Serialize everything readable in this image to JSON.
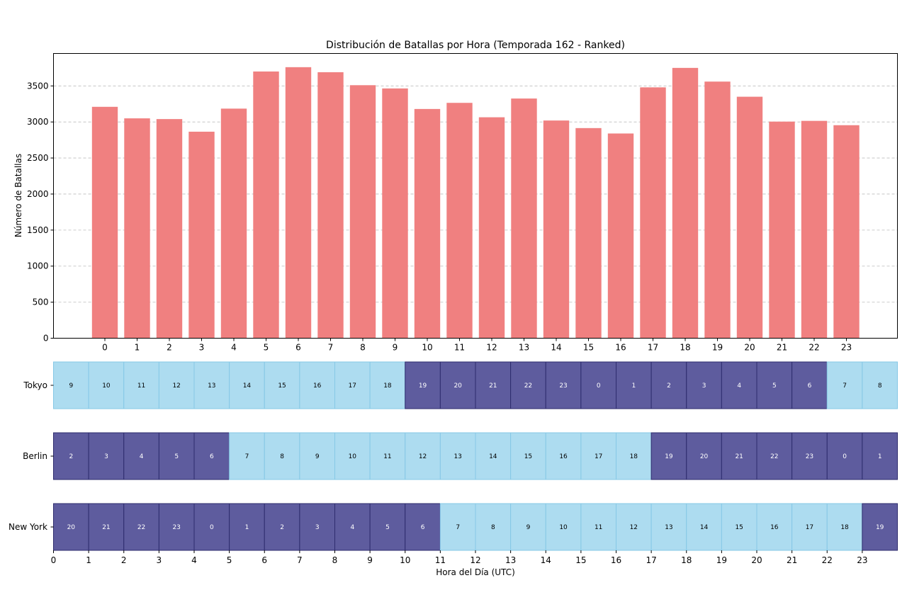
{
  "chart_data": [
    {
      "type": "bar",
      "title": "Distribución de Batallas por Hora (Temporada 162 - Ranked)",
      "xlabel": "",
      "ylabel": "Número de Batallas",
      "categories": [
        "0",
        "1",
        "2",
        "3",
        "4",
        "5",
        "6",
        "7",
        "8",
        "9",
        "10",
        "11",
        "12",
        "13",
        "14",
        "15",
        "16",
        "17",
        "18",
        "19",
        "20",
        "21",
        "22",
        "23"
      ],
      "values": [
        3210,
        3050,
        3040,
        2865,
        3185,
        3700,
        3760,
        3690,
        3510,
        3465,
        3180,
        3265,
        3065,
        3325,
        3020,
        2915,
        2840,
        3480,
        3750,
        3560,
        3350,
        3005,
        3015,
        2955
      ],
      "ylim": [
        0,
        3950
      ],
      "yticks": [
        0,
        500,
        1000,
        1500,
        2000,
        2500,
        3000,
        3500
      ],
      "grid": "y-dashed",
      "bar_color": "#F08080"
    },
    {
      "type": "heatmap",
      "xlabel": "Hora del Día (UTC)",
      "xticks": [
        "0",
        "1",
        "2",
        "3",
        "4",
        "5",
        "6",
        "7",
        "8",
        "9",
        "10",
        "11",
        "12",
        "13",
        "14",
        "15",
        "16",
        "17",
        "18",
        "19",
        "20",
        "21",
        "22",
        "23"
      ],
      "day_color": "#ADDCF0",
      "night_color": "#5E5C9E",
      "rows": [
        {
          "label": "Tokyo",
          "hours": [
            9,
            10,
            11,
            12,
            13,
            14,
            15,
            16,
            17,
            18,
            19,
            20,
            21,
            22,
            23,
            0,
            1,
            2,
            3,
            4,
            5,
            6,
            7,
            8
          ]
        },
        {
          "label": "Berlin",
          "hours": [
            2,
            3,
            4,
            5,
            6,
            7,
            8,
            9,
            10,
            11,
            12,
            13,
            14,
            15,
            16,
            17,
            18,
            19,
            20,
            21,
            22,
            23,
            0,
            1
          ]
        },
        {
          "label": "New York",
          "hours": [
            20,
            21,
            22,
            23,
            0,
            1,
            2,
            3,
            4,
            5,
            6,
            7,
            8,
            9,
            10,
            11,
            12,
            13,
            14,
            15,
            16,
            17,
            18,
            19
          ]
        }
      ]
    }
  ]
}
